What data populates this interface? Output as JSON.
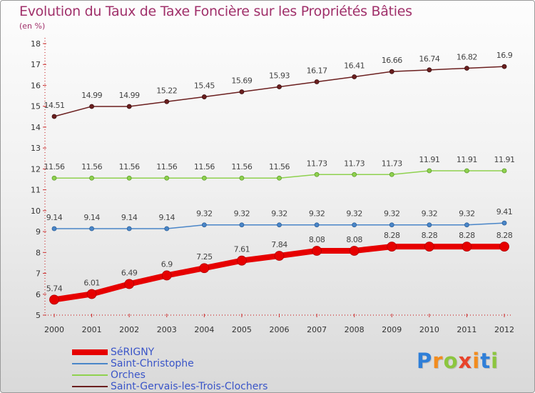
{
  "header": {
    "title": "Evolution du Taux de Taxe Foncière sur les Propriétés Bâties",
    "unit": "(en %)"
  },
  "logo": {
    "letters": [
      "P",
      "r",
      "o",
      "x",
      "i",
      "t",
      "i"
    ],
    "colors": [
      "#2f7fd8",
      "#f28c1e",
      "#8cc63f",
      "#e8432a",
      "#f28c1e",
      "#2f7fd8",
      "#8cc63f"
    ]
  },
  "chart_data": {
    "type": "line",
    "title": "Evolution du Taux de Taxe Foncière sur les Propriétés Bâties",
    "ylabel": "(en %)",
    "xlabel": "",
    "x": [
      "2000",
      "2001",
      "2002",
      "2003",
      "2004",
      "2005",
      "2006",
      "2007",
      "2008",
      "2009",
      "2010",
      "2011",
      "2012"
    ],
    "ylim": [
      5,
      18
    ],
    "yticks": [
      5,
      6,
      7,
      8,
      9,
      10,
      11,
      12,
      13,
      14,
      15,
      16,
      17,
      18
    ],
    "grid": false,
    "legend_position": "bottom-left",
    "series": [
      {
        "name": "SéRIGNY",
        "color": "#e60000",
        "values": [
          5.74,
          6.01,
          6.49,
          6.9,
          7.25,
          7.61,
          7.84,
          8.08,
          8.08,
          8.28,
          8.28,
          8.28,
          8.28
        ],
        "labels": [
          "5.74",
          "6.01",
          "6.49",
          "6.9",
          "7.25",
          "7.61",
          "7.84",
          "8.08",
          "8.08",
          "8.28",
          "8.28",
          "8.28",
          "8.28"
        ]
      },
      {
        "name": "Saint-Christophe",
        "color": "#4a86c8",
        "values": [
          9.14,
          9.14,
          9.14,
          9.14,
          9.32,
          9.32,
          9.32,
          9.32,
          9.32,
          9.32,
          9.32,
          9.32,
          9.41
        ],
        "labels": [
          "9.14",
          "9.14",
          "9.14",
          "9.14",
          "9.32",
          "9.32",
          "9.32",
          "9.32",
          "9.32",
          "9.32",
          "9.32",
          "9.32",
          "9.41"
        ]
      },
      {
        "name": "Orches",
        "color": "#8fd14f",
        "values": [
          11.56,
          11.56,
          11.56,
          11.56,
          11.56,
          11.56,
          11.56,
          11.73,
          11.73,
          11.73,
          11.91,
          11.91,
          11.91
        ],
        "labels": [
          "11.56",
          "11.56",
          "11.56",
          "11.56",
          "11.56",
          "11.56",
          "11.56",
          "11.73",
          "11.73",
          "11.73",
          "11.91",
          "11.91",
          "11.91"
        ]
      },
      {
        "name": "Saint-Gervais-les-Trois-Clochers",
        "color": "#6b1f1f",
        "values": [
          14.51,
          14.99,
          14.99,
          15.22,
          15.45,
          15.69,
          15.93,
          16.17,
          16.41,
          16.66,
          16.74,
          16.82,
          16.9
        ],
        "labels": [
          "14.51",
          "14.99",
          "14.99",
          "15.22",
          "15.45",
          "15.69",
          "15.93",
          "16.17",
          "16.41",
          "16.66",
          "16.74",
          "16.82",
          "16.9"
        ]
      }
    ]
  }
}
